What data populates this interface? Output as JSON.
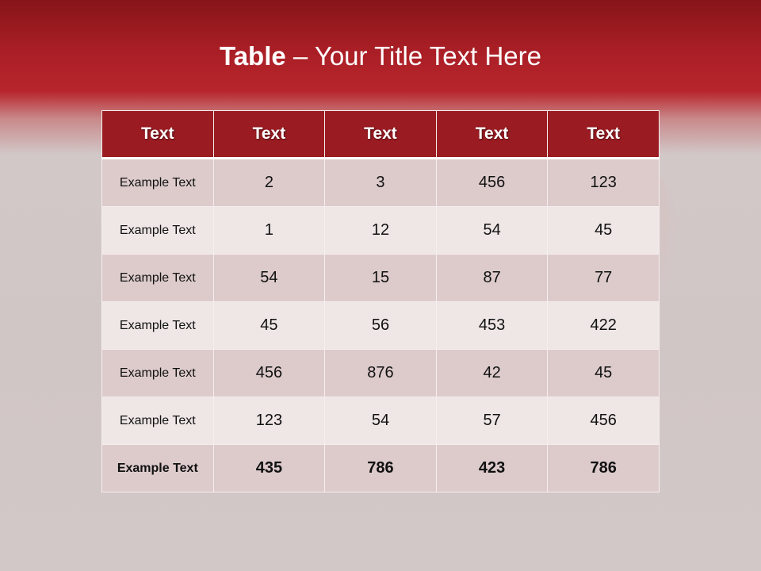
{
  "slide": {
    "title_bold": "Table",
    "title_rest": " – Your Title Text Here"
  },
  "table": {
    "headers": [
      "Text",
      "Text",
      "Text",
      "Text",
      "Text"
    ],
    "rows": [
      [
        "Example Text",
        "2",
        "3",
        "456",
        "123"
      ],
      [
        "Example Text",
        "1",
        "12",
        "54",
        "45"
      ],
      [
        "Example Text",
        "54",
        "15",
        "87",
        "77"
      ],
      [
        "Example Text",
        "45",
        "56",
        "453",
        "422"
      ],
      [
        "Example Text",
        "456",
        "876",
        "42",
        "45"
      ],
      [
        "Example Text",
        "123",
        "54",
        "57",
        "456"
      ],
      [
        "Example Text",
        "435",
        "786",
        "423",
        "786"
      ]
    ]
  },
  "colors": {
    "header": "#9a1c22",
    "band": "#b8252c",
    "row_dark": "#ddcbcb",
    "row_light": "#efe6e6"
  }
}
